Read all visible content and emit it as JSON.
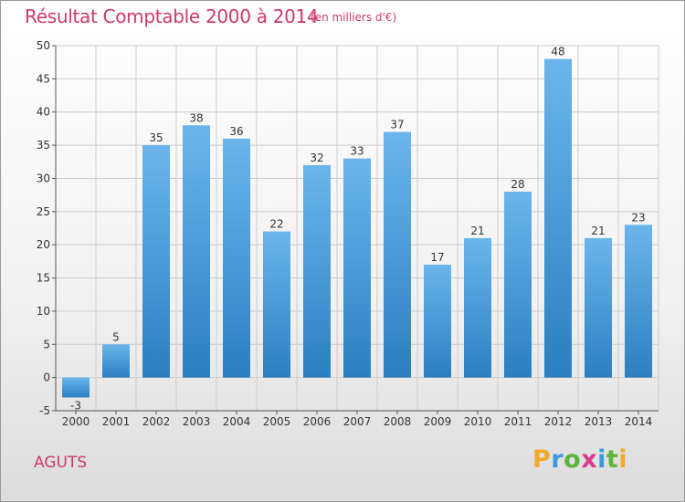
{
  "chart_data": {
    "type": "bar",
    "title": "Résultat Comptable 2000 à 2014",
    "subtitle": "(en milliers d'€)",
    "categories": [
      "2000",
      "2001",
      "2002",
      "2003",
      "2004",
      "2005",
      "2006",
      "2007",
      "2008",
      "2009",
      "2010",
      "2011",
      "2012",
      "2013",
      "2014"
    ],
    "values": [
      -3,
      5,
      35,
      38,
      36,
      22,
      32,
      33,
      37,
      17,
      21,
      28,
      48,
      21,
      23
    ],
    "ylim": [
      -5,
      50
    ],
    "yticks": [
      -5,
      0,
      5,
      10,
      15,
      20,
      25,
      30,
      35,
      40,
      45,
      50
    ],
    "xlabel": "",
    "ylabel": "",
    "grid": true
  },
  "commune": "AGUTS",
  "logo": {
    "text": "Proxiti",
    "letter_colors": [
      "#f0a92b",
      "#3d9ad8",
      "#5fb33a",
      "#d83a8c",
      "#3d9ad8",
      "#5fb33a",
      "#f0a92b"
    ]
  },
  "colors": {
    "title": "#d0386a",
    "bar_light": "#6bb5ec",
    "bar_dark": "#2b7fc0",
    "grid": "#cccccc",
    "axis_text": "#333333"
  }
}
